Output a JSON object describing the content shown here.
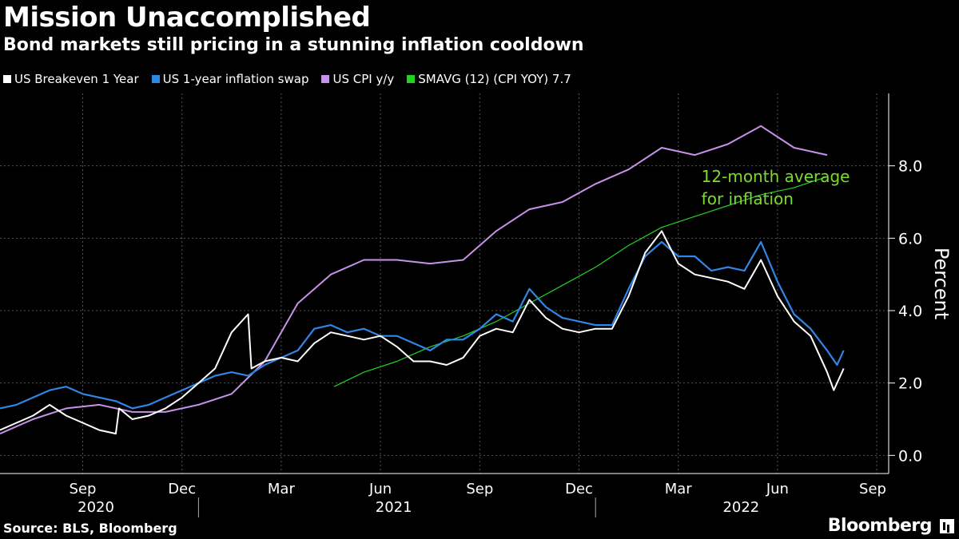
{
  "title": "Mission Unaccomplished",
  "subtitle": "Bond markets still pricing in a stunning inflation cooldown",
  "source": "Source: BLS, Bloomberg",
  "brand": "Bloomberg",
  "colors": {
    "background": "#000000",
    "breakeven": "#ffffff",
    "swap": "#2f86e6",
    "cpi": "#c792ea",
    "smavg": "#22d422",
    "annotation": "#7bdc2a",
    "grid": "#555555"
  },
  "chart_data": {
    "type": "line",
    "legend": [
      {
        "key": "breakeven",
        "label": "US Breakeven 1 Year"
      },
      {
        "key": "swap",
        "label": "US 1-year inflation swap"
      },
      {
        "key": "cpi",
        "label": "US CPI y/y"
      },
      {
        "key": "smavg",
        "label": "SMAVG (12) (CPI YOY) 7.7"
      }
    ],
    "ylabel": "Percent",
    "ylim": [
      -0.5,
      10
    ],
    "yticks": [
      0.0,
      2.0,
      4.0,
      6.0,
      8.0
    ],
    "ytick_labels": [
      "0.0",
      "2.0",
      "4.0",
      "6.0",
      "8.0"
    ],
    "xlim_months": [
      0,
      25.8
    ],
    "month_ticks": [
      {
        "label": "Sep",
        "m": 2.5
      },
      {
        "label": "Dec",
        "m": 5.5
      },
      {
        "label": "Mar",
        "m": 8.5
      },
      {
        "label": "Jun",
        "m": 11.5
      },
      {
        "label": "Sep",
        "m": 14.5
      },
      {
        "label": "Dec",
        "m": 17.5
      },
      {
        "label": "Mar",
        "m": 20.5
      },
      {
        "label": "Jun",
        "m": 23.5
      },
      {
        "label": "Sep",
        "m": 26.5
      }
    ],
    "year_labels": [
      {
        "label": "2020",
        "m": 2.9
      },
      {
        "label": "2021",
        "m": 11.9
      },
      {
        "label": "2022",
        "m": 22.4
      }
    ],
    "year_dividers": [
      6.0,
      18.0
    ],
    "annotation": {
      "lines": [
        "12-month average",
        "for inflation"
      ],
      "m": 21.2,
      "y": 7.6
    },
    "series": [
      {
        "key": "cpi",
        "name": "US CPI y/y",
        "points": [
          [
            0,
            0.6
          ],
          [
            1,
            1.0
          ],
          [
            2,
            1.3
          ],
          [
            3,
            1.4
          ],
          [
            4,
            1.2
          ],
          [
            5,
            1.2
          ],
          [
            6,
            1.4
          ],
          [
            7,
            1.7
          ],
          [
            8,
            2.6
          ],
          [
            9,
            4.2
          ],
          [
            10,
            5.0
          ],
          [
            11,
            5.4
          ],
          [
            12,
            5.4
          ],
          [
            13,
            5.3
          ],
          [
            14,
            5.4
          ],
          [
            15,
            6.2
          ],
          [
            16,
            6.8
          ],
          [
            17,
            7.0
          ],
          [
            18,
            7.5
          ],
          [
            19,
            7.9
          ],
          [
            20,
            8.5
          ],
          [
            21,
            8.3
          ],
          [
            22,
            8.6
          ],
          [
            23,
            9.1
          ],
          [
            24,
            8.5
          ],
          [
            25,
            8.3
          ]
        ]
      },
      {
        "key": "smavg",
        "name": "SMAVG (12) (CPI YOY) 7.7",
        "points": [
          [
            10.1,
            1.9
          ],
          [
            11,
            2.3
          ],
          [
            12,
            2.6
          ],
          [
            13,
            3.0
          ],
          [
            14,
            3.3
          ],
          [
            15,
            3.7
          ],
          [
            16,
            4.2
          ],
          [
            17,
            4.7
          ],
          [
            18,
            5.2
          ],
          [
            19,
            5.8
          ],
          [
            20,
            6.3
          ],
          [
            21,
            6.6
          ],
          [
            22,
            6.9
          ],
          [
            23,
            7.2
          ],
          [
            24,
            7.4
          ],
          [
            25,
            7.7
          ]
        ]
      },
      {
        "key": "swap",
        "name": "US 1-year inflation swap",
        "points": [
          [
            0,
            1.3
          ],
          [
            0.5,
            1.4
          ],
          [
            1,
            1.6
          ],
          [
            1.5,
            1.8
          ],
          [
            2,
            1.9
          ],
          [
            2.5,
            1.7
          ],
          [
            3,
            1.6
          ],
          [
            3.5,
            1.5
          ],
          [
            4,
            1.3
          ],
          [
            4.5,
            1.4
          ],
          [
            5,
            1.6
          ],
          [
            5.5,
            1.8
          ],
          [
            6,
            2.0
          ],
          [
            6.5,
            2.2
          ],
          [
            7,
            2.3
          ],
          [
            7.5,
            2.2
          ],
          [
            8,
            2.5
          ],
          [
            8.5,
            2.7
          ],
          [
            9,
            2.9
          ],
          [
            9.5,
            3.5
          ],
          [
            10,
            3.6
          ],
          [
            10.5,
            3.4
          ],
          [
            11,
            3.5
          ],
          [
            11.5,
            3.3
          ],
          [
            12,
            3.3
          ],
          [
            12.5,
            3.1
          ],
          [
            13,
            2.9
          ],
          [
            13.5,
            3.2
          ],
          [
            14,
            3.2
          ],
          [
            14.5,
            3.5
          ],
          [
            15,
            3.9
          ],
          [
            15.5,
            3.7
          ],
          [
            16,
            4.6
          ],
          [
            16.5,
            4.1
          ],
          [
            17,
            3.8
          ],
          [
            17.5,
            3.7
          ],
          [
            18,
            3.6
          ],
          [
            18.5,
            3.6
          ],
          [
            19,
            4.6
          ],
          [
            19.5,
            5.5
          ],
          [
            20,
            5.9
          ],
          [
            20.5,
            5.5
          ],
          [
            21,
            5.5
          ],
          [
            21.5,
            5.1
          ],
          [
            22,
            5.2
          ],
          [
            22.5,
            5.1
          ],
          [
            23,
            5.9
          ],
          [
            23.5,
            4.8
          ],
          [
            24,
            3.9
          ],
          [
            24.5,
            3.5
          ],
          [
            25,
            2.9
          ],
          [
            25.3,
            2.5
          ],
          [
            25.5,
            2.9
          ]
        ]
      },
      {
        "key": "breakeven",
        "name": "US Breakeven 1 Year",
        "points": [
          [
            0,
            0.7
          ],
          [
            0.5,
            0.9
          ],
          [
            1,
            1.1
          ],
          [
            1.5,
            1.4
          ],
          [
            2,
            1.1
          ],
          [
            2.5,
            0.9
          ],
          [
            3,
            0.7
          ],
          [
            3.5,
            0.6
          ],
          [
            3.6,
            1.3
          ],
          [
            4,
            1.0
          ],
          [
            4.5,
            1.1
          ],
          [
            5,
            1.3
          ],
          [
            5.5,
            1.6
          ],
          [
            6,
            2.0
          ],
          [
            6.5,
            2.4
          ],
          [
            7,
            3.4
          ],
          [
            7.5,
            3.9
          ],
          [
            7.6,
            2.4
          ],
          [
            8,
            2.6
          ],
          [
            8.5,
            2.7
          ],
          [
            9,
            2.6
          ],
          [
            9.5,
            3.1
          ],
          [
            10,
            3.4
          ],
          [
            10.5,
            3.3
          ],
          [
            11,
            3.2
          ],
          [
            11.5,
            3.3
          ],
          [
            12,
            3.0
          ],
          [
            12.5,
            2.6
          ],
          [
            13,
            2.6
          ],
          [
            13.5,
            2.5
          ],
          [
            14,
            2.7
          ],
          [
            14.5,
            3.3
          ],
          [
            15,
            3.5
          ],
          [
            15.5,
            3.4
          ],
          [
            16,
            4.3
          ],
          [
            16.5,
            3.8
          ],
          [
            17,
            3.5
          ],
          [
            17.5,
            3.4
          ],
          [
            18,
            3.5
          ],
          [
            18.5,
            3.5
          ],
          [
            19,
            4.4
          ],
          [
            19.5,
            5.6
          ],
          [
            20,
            6.2
          ],
          [
            20.5,
            5.3
          ],
          [
            21,
            5.0
          ],
          [
            21.5,
            4.9
          ],
          [
            22,
            4.8
          ],
          [
            22.5,
            4.6
          ],
          [
            23,
            5.4
          ],
          [
            23.5,
            4.4
          ],
          [
            24,
            3.7
          ],
          [
            24.5,
            3.3
          ],
          [
            25,
            2.3
          ],
          [
            25.2,
            1.8
          ],
          [
            25.5,
            2.4
          ]
        ]
      }
    ]
  }
}
